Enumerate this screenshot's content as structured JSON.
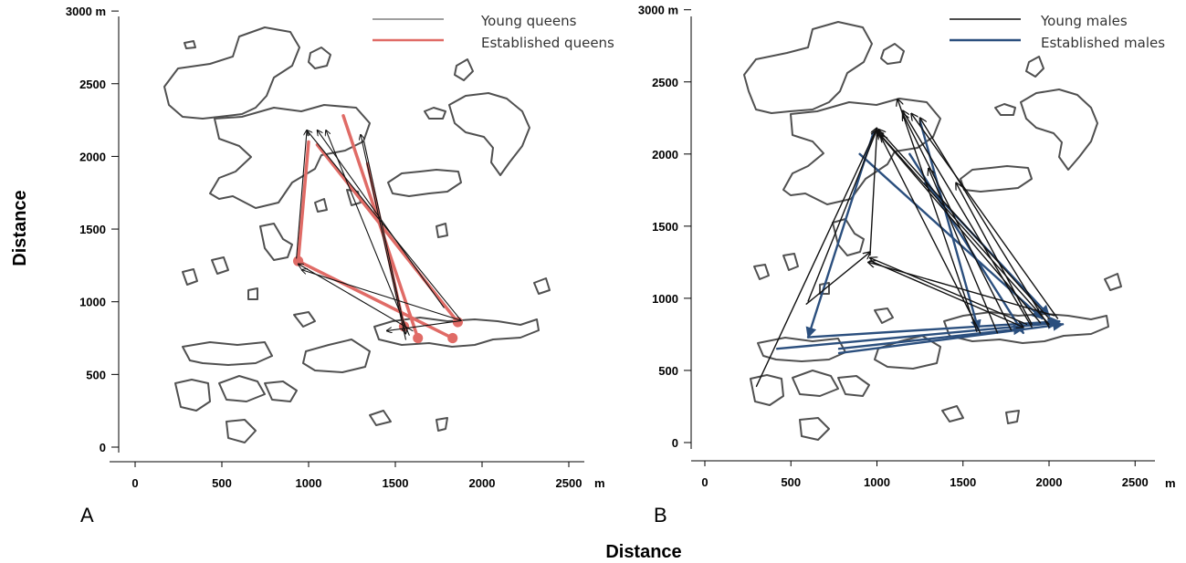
{
  "figure": {
    "y_axis_title": "Distance",
    "x_axis_title": "Distance"
  },
  "colors": {
    "young": "#111111",
    "established_queens": "#e06b66",
    "established_males": "#2b4f7e",
    "island_outline": "#505050"
  },
  "chart_data": [
    {
      "type": "scatter",
      "panel_label": "A",
      "x_unit": "m",
      "y_unit": "m",
      "xlim": [
        0,
        2800
      ],
      "ylim": [
        0,
        3000
      ],
      "x_ticks": [
        0,
        500,
        1000,
        1500,
        2000,
        2500
      ],
      "y_ticks": [
        0,
        500,
        1000,
        1500,
        2000,
        2500,
        3000
      ],
      "y_top_label": "3000 m",
      "legend": [
        {
          "label": "Young queens",
          "color": "#111111",
          "series": "young"
        },
        {
          "label": "Established queens",
          "color": "#e06b66",
          "series": "established"
        }
      ],
      "series": [
        {
          "name": "Young queens",
          "color": "#111111",
          "arrows": [
            {
              "from": [
                930,
                1300
              ],
              "to": [
                990,
                2180
              ]
            },
            {
              "from": [
                1880,
                870
              ],
              "to": [
                990,
                2180
              ]
            },
            {
              "from": [
                1780,
                960
              ],
              "to": [
                1050,
                2180
              ]
            },
            {
              "from": [
                1580,
                770
              ],
              "to": [
                1100,
                2180
              ]
            },
            {
              "from": [
                1560,
                740
              ],
              "to": [
                1300,
                2150
              ]
            },
            {
              "from": [
                1880,
                870
              ],
              "to": [
                960,
                1220
              ]
            },
            {
              "from": [
                1880,
                870
              ],
              "to": [
                1450,
                800
              ]
            },
            {
              "from": [
                1600,
                800
              ],
              "to": [
                940,
                1260
              ]
            },
            {
              "from": [
                1320,
                2100
              ],
              "to": [
                1560,
                780
              ]
            }
          ]
        },
        {
          "name": "Established queens",
          "color": "#e06b66",
          "arrows": [
            {
              "from": [
                1000,
                2100
              ],
              "to": [
                940,
                1280
              ]
            },
            {
              "from": [
                940,
                1280
              ],
              "to": [
                1830,
                750
              ]
            },
            {
              "from": [
                1050,
                2080
              ],
              "to": [
                1860,
                860
              ]
            },
            {
              "from": [
                1200,
                2280
              ],
              "to": [
                1630,
                750
              ]
            },
            {
              "from": [
                1340,
                1950
              ],
              "to": [
                1550,
                830
              ]
            }
          ]
        }
      ]
    },
    {
      "type": "scatter",
      "panel_label": "B",
      "x_unit": "m",
      "y_unit": "m",
      "xlim": [
        -50,
        2650
      ],
      "ylim": [
        -100,
        3000
      ],
      "x_ticks": [
        0,
        500,
        1000,
        1500,
        2000,
        2500
      ],
      "y_ticks": [
        0,
        500,
        1000,
        1500,
        2000,
        2500,
        3000
      ],
      "y_top_label": "3000 m",
      "legend": [
        {
          "label": "Young males",
          "color": "#111111",
          "series": "young"
        },
        {
          "label": "Established males",
          "color": "#2b4f7e",
          "series": "established"
        }
      ],
      "series": [
        {
          "name": "Young males",
          "color": "#111111",
          "arrows": [
            {
              "from": [
                300,
                390
              ],
              "to": [
                1000,
                2180
              ]
            },
            {
              "from": [
                2000,
                820
              ],
              "to": [
                1000,
                2160
              ]
            },
            {
              "from": [
                1950,
                830
              ],
              "to": [
                1020,
                2130
              ]
            },
            {
              "from": [
                1900,
                800
              ],
              "to": [
                1150,
                2300
              ]
            },
            {
              "from": [
                2050,
                860
              ],
              "to": [
                1200,
                2280
              ]
            },
            {
              "from": [
                2000,
                800
              ],
              "to": [
                1250,
                2250
              ]
            },
            {
              "from": [
                1870,
                820
              ],
              "to": [
                960,
                1280
              ]
            },
            {
              "from": [
                2030,
                880
              ],
              "to": [
                950,
                1250
              ]
            },
            {
              "from": [
                960,
                1260
              ],
              "to": [
                1850,
                800
              ]
            },
            {
              "from": [
                600,
                980
              ],
              "to": [
                1000,
                2170
              ]
            },
            {
              "from": [
                2000,
                860
              ],
              "to": [
                1010,
                2170
              ]
            },
            {
              "from": [
                1600,
                760
              ],
              "to": [
                1010,
                2150
              ]
            },
            {
              "from": [
                1700,
                760
              ],
              "to": [
                1300,
                1900
              ]
            },
            {
              "from": [
                1900,
                820
              ],
              "to": [
                1460,
                1800
              ]
            },
            {
              "from": [
                1580,
                770
              ],
              "to": [
                1120,
                2380
              ]
            },
            {
              "from": [
                960,
                1300
              ],
              "to": [
                1000,
                2160
              ]
            },
            {
              "from": [
                590,
                960
              ],
              "to": [
                960,
                1320
              ]
            },
            {
              "from": [
                1780,
                780
              ],
              "to": [
                1150,
                2280
              ]
            }
          ]
        },
        {
          "name": "Established males",
          "color": "#2b4f7e",
          "arrows": [
            {
              "from": [
                980,
                2150
              ],
              "to": [
                600,
                730
              ]
            },
            {
              "from": [
                600,
                730
              ],
              "to": [
                2060,
                840
              ]
            },
            {
              "from": [
                420,
                650
              ],
              "to": [
                2050,
                830
              ]
            },
            {
              "from": [
                780,
                620
              ],
              "to": [
                2080,
                820
              ]
            },
            {
              "from": [
                1250,
                2230
              ],
              "to": [
                1590,
                780
              ]
            },
            {
              "from": [
                1190,
                2000
              ],
              "to": [
                1850,
                760
              ]
            },
            {
              "from": [
                900,
                2000
              ],
              "to": [
                1960,
                860
              ]
            },
            {
              "from": [
                1280,
                1800
              ],
              "to": [
                2000,
                880
              ]
            },
            {
              "from": [
                780,
                650
              ],
              "to": [
                1850,
                790
              ]
            }
          ]
        }
      ]
    }
  ]
}
